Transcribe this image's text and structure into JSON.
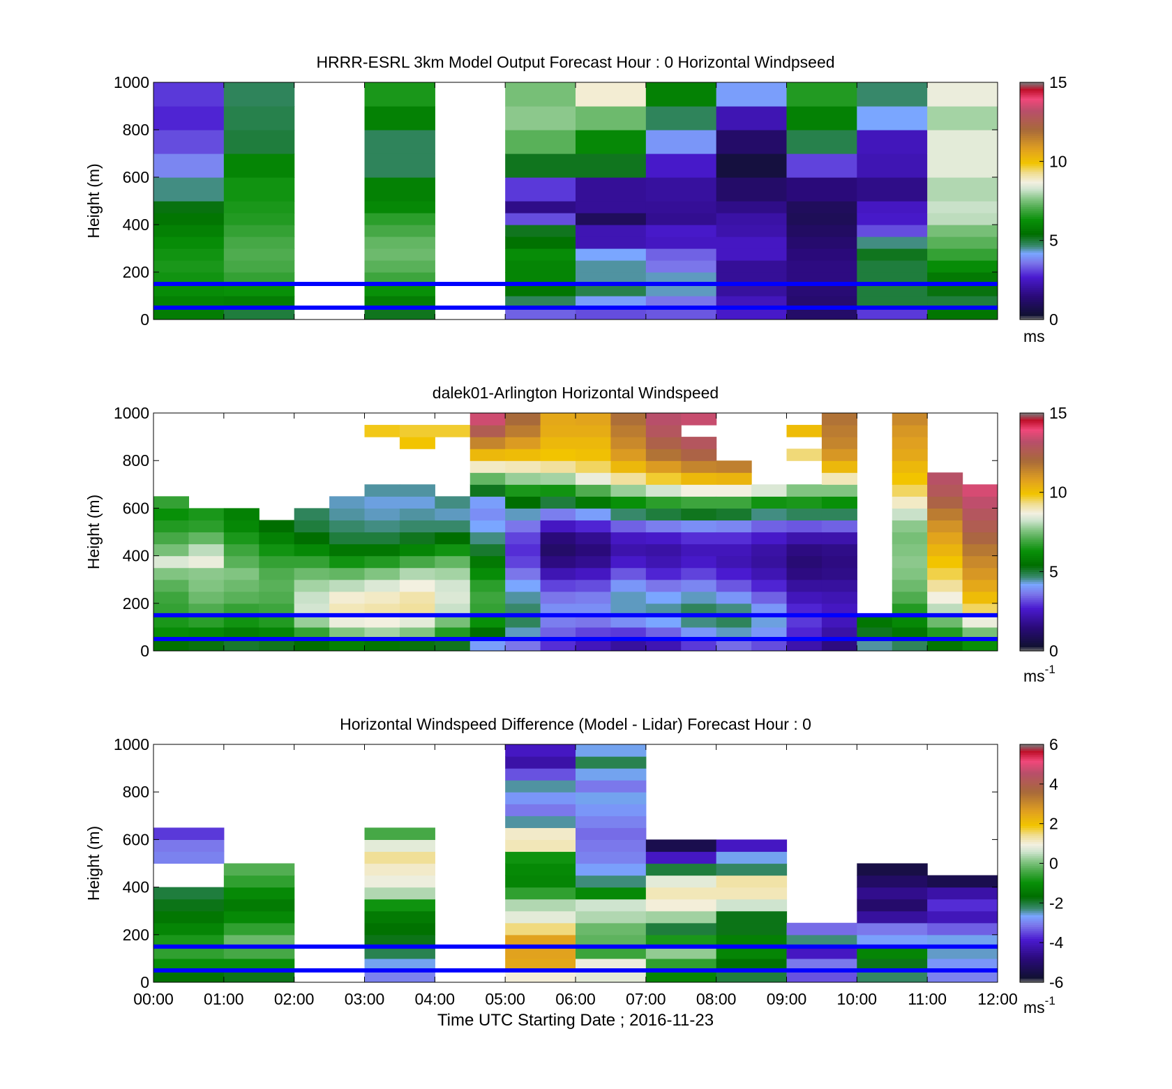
{
  "figure": {
    "x_labels": [
      "00:00",
      "01:00",
      "02:00",
      "03:00",
      "04:00",
      "05:00",
      "06:00",
      "07:00",
      "08:00",
      "09:00",
      "10:00",
      "11:00",
      "12:00"
    ],
    "x_title": "Time UTC  Starting Date ; 2016-11-23",
    "highlight_heights_m": [
      50,
      150
    ],
    "highlight_color": "#0000ff"
  },
  "colors": {
    "background": "#ffffff",
    "nodata_gray": "#808080",
    "speed_colormap": [
      [
        0.0,
        "#7a7a7a"
      ],
      [
        0.02,
        "#111133"
      ],
      [
        0.1,
        "#2a0a7a"
      ],
      [
        0.18,
        "#4a1ad0"
      ],
      [
        0.24,
        "#7b76ea"
      ],
      [
        0.28,
        "#7aa6ff"
      ],
      [
        0.31,
        "#3b8a72"
      ],
      [
        0.36,
        "#006e00"
      ],
      [
        0.42,
        "#089008"
      ],
      [
        0.47,
        "#4aaa4a"
      ],
      [
        0.51,
        "#86c686"
      ],
      [
        0.55,
        "#cfe4cf"
      ],
      [
        0.58,
        "#f3f0e0"
      ],
      [
        0.62,
        "#f0dd90"
      ],
      [
        0.66,
        "#f2c400"
      ],
      [
        0.72,
        "#e0a020"
      ],
      [
        0.8,
        "#a86a3a"
      ],
      [
        0.88,
        "#b84f6a"
      ],
      [
        0.93,
        "#f0487a"
      ],
      [
        0.97,
        "#c0102a"
      ],
      [
        1.0,
        "#7a7a7a"
      ]
    ]
  },
  "chart_data": [
    {
      "type": "heatmap",
      "title": "HRRR-ESRL 3km Model Output   Forecast Hour : 0 Horizontal Windpseed",
      "xlabel": "",
      "ylabel": "Height (m)",
      "ylim": [
        0,
        1000
      ],
      "yticks": [
        0,
        200,
        400,
        600,
        800,
        1000
      ],
      "clim": [
        0,
        15
      ],
      "cticks": [
        0,
        5,
        10,
        15
      ],
      "cbar_label": "ms",
      "cbar_sup": "",
      "x_hours": [
        0,
        1,
        2,
        3,
        4,
        5,
        6,
        7,
        8,
        9,
        10,
        11
      ],
      "levels_m": [
        50,
        100,
        150,
        200,
        250,
        300,
        350,
        400,
        450,
        500,
        600,
        700,
        800,
        900,
        1000
      ],
      "windspeed_ms": [
        [
          5.8,
          5.9,
          6.2,
          6.4,
          6.5,
          6.4,
          6.2,
          5.9,
          5.6,
          5.3,
          4.6,
          3.8,
          3.2,
          2.8,
          3.0
        ],
        [
          5.0,
          5.8,
          6.3,
          6.8,
          7.0,
          7.1,
          7.0,
          6.8,
          6.6,
          6.5,
          6.4,
          6.0,
          5.0,
          4.9,
          4.8
        ],
        [
          null,
          null,
          null,
          null,
          null,
          null,
          null,
          null,
          null,
          null,
          null,
          null,
          null,
          null,
          null
        ],
        [
          5.2,
          5.8,
          6.3,
          6.9,
          7.2,
          7.4,
          7.3,
          7.0,
          6.7,
          6.1,
          5.9,
          4.8,
          4.8,
          5.9,
          6.5
        ],
        [
          null,
          null,
          null,
          null,
          null,
          null,
          null,
          null,
          null,
          null,
          null,
          null,
          null,
          null,
          null
        ],
        [
          3.4,
          4.8,
          5.6,
          6.0,
          6.0,
          6.2,
          5.5,
          5.2,
          3.2,
          1.7,
          3.0,
          5.2,
          7.2,
          7.7,
          7.5
        ],
        [
          3.2,
          4.1,
          4.9,
          4.5,
          4.5,
          4.2,
          2.3,
          2.3,
          1.0,
          1.9,
          1.9,
          5.2,
          6.1,
          7.4,
          8.8
        ],
        [
          3.3,
          3.6,
          4.4,
          4.4,
          3.6,
          3.4,
          2.5,
          2.6,
          1.8,
          1.9,
          2.0,
          2.6,
          4.0,
          4.8,
          5.9
        ],
        [
          2.6,
          2.4,
          2.0,
          1.9,
          1.9,
          2.5,
          2.5,
          2.2,
          2.1,
          1.7,
          1.2,
          0.5,
          1.2,
          2.3,
          4.1
        ],
        [
          1.2,
          1.3,
          1.4,
          1.6,
          1.6,
          1.5,
          1.3,
          1.1,
          0.9,
          1.0,
          1.5,
          3.1,
          4.9,
          5.9,
          6.6
        ],
        [
          3.0,
          5.0,
          5.0,
          5.0,
          5.0,
          5.2,
          4.6,
          3.2,
          2.6,
          2.5,
          1.7,
          2.3,
          2.4,
          4.2,
          4.7
        ],
        [
          5.6,
          5.0,
          5.3,
          5.7,
          6.2,
          6.8,
          7.2,
          7.5,
          8.1,
          8.2,
          8.0,
          8.5,
          8.5,
          7.9,
          8.6
        ]
      ]
    },
    {
      "type": "heatmap",
      "title": "dalek01-Arlington  Horizontal Windspeed",
      "xlabel": "",
      "ylabel": "Height (m)",
      "ylim": [
        0,
        1000
      ],
      "yticks": [
        0,
        200,
        400,
        600,
        800,
        1000
      ],
      "clim": [
        0,
        15
      ],
      "cticks": [
        0,
        5,
        10,
        15
      ],
      "cbar_label": "ms",
      "cbar_sup": "-1",
      "x_hours": [
        0,
        0.5,
        1,
        1.5,
        2,
        2.5,
        3,
        3.5,
        4,
        4.5,
        5,
        5.5,
        6,
        6.5,
        7,
        7.5,
        8,
        8.5,
        9,
        9.5,
        10,
        10.5,
        11,
        11.5
      ],
      "levels_m": [
        50,
        100,
        150,
        200,
        250,
        300,
        350,
        400,
        450,
        500,
        550,
        600,
        650,
        700,
        750,
        800,
        850,
        900,
        950,
        1000
      ],
      "windspeed_ms": [
        [
          5.5,
          6.2,
          6.5,
          6.8,
          6.9,
          7.2,
          7.6,
          8.4,
          7.5,
          7.0,
          6.6,
          6.3,
          6.8,
          null,
          null,
          null,
          null,
          null,
          null,
          null
        ],
        [
          5.3,
          6.1,
          6.7,
          7.1,
          7.4,
          7.6,
          7.7,
          8.6,
          8.1,
          7.3,
          6.7,
          6.5,
          null,
          null,
          null,
          null,
          null,
          null,
          null,
          null
        ],
        [
          5.1,
          5.8,
          6.4,
          6.8,
          7.2,
          7.4,
          7.6,
          7.2,
          6.9,
          6.5,
          6.1,
          5.9,
          null,
          null,
          null,
          null,
          null,
          null,
          null,
          null
        ],
        [
          5.2,
          6.0,
          6.6,
          6.9,
          7.1,
          7.2,
          7.1,
          6.8,
          6.4,
          5.9,
          5.4,
          null,
          null,
          null,
          null,
          null,
          null,
          null,
          null,
          null
        ],
        [
          5.4,
          6.8,
          7.8,
          8.3,
          8.2,
          7.9,
          7.4,
          6.8,
          6.1,
          5.4,
          5.0,
          4.8,
          null,
          null,
          null,
          null,
          null,
          null,
          null,
          null
        ],
        [
          5.9,
          7.6,
          8.6,
          9.0,
          8.8,
          8.1,
          7.3,
          6.4,
          5.6,
          5.0,
          4.7,
          4.5,
          4.4,
          null,
          null,
          null,
          null,
          null,
          null,
          null
        ],
        [
          5.6,
          7.9,
          8.7,
          9.1,
          8.9,
          8.4,
          7.6,
          6.6,
          5.6,
          5.0,
          4.6,
          4.4,
          4.3,
          4.5,
          null,
          null,
          null,
          null,
          9.8,
          null
        ],
        [
          5.3,
          7.6,
          8.5,
          9.2,
          9.1,
          8.7,
          8.0,
          7.0,
          6.0,
          5.2,
          4.7,
          4.5,
          4.3,
          4.5,
          null,
          null,
          null,
          9.9,
          9.7,
          null
        ],
        [
          5.2,
          6.6,
          7.5,
          8.2,
          8.4,
          8.3,
          7.9,
          7.3,
          6.4,
          5.4,
          4.7,
          4.4,
          4.6,
          null,
          null,
          null,
          null,
          null,
          9.7,
          null
        ],
        [
          4.1,
          5.4,
          6.3,
          6.8,
          6.9,
          6.7,
          6.2,
          5.7,
          5.1,
          4.6,
          4.2,
          3.9,
          4.1,
          5.2,
          7.3,
          8.9,
          10.2,
          11.4,
          12.6,
          13.5
        ],
        [
          3.6,
          4.4,
          4.8,
          4.7,
          4.5,
          4.2,
          3.6,
          3.1,
          2.9,
          3.1,
          3.6,
          4.4,
          5.4,
          6.5,
          7.8,
          9.0,
          10.1,
          10.9,
          11.6,
          12.0
        ],
        [
          2.9,
          3.4,
          3.7,
          3.9,
          3.6,
          3.1,
          2.3,
          1.6,
          1.2,
          1.5,
          2.5,
          3.7,
          5.0,
          6.4,
          7.9,
          9.2,
          9.9,
          10.2,
          10.5,
          10.6
        ],
        [
          2.4,
          3.1,
          3.6,
          3.9,
          3.7,
          3.2,
          2.5,
          1.8,
          1.5,
          1.8,
          2.8,
          4.1,
          5.7,
          7.1,
          8.6,
          9.5,
          10.0,
          10.2,
          10.5,
          10.7
        ],
        [
          2.0,
          3.0,
          3.9,
          4.4,
          4.4,
          4.0,
          3.3,
          2.6,
          2.2,
          2.5,
          3.4,
          4.7,
          6.3,
          7.8,
          9.2,
          10.2,
          10.9,
          11.3,
          11.6,
          11.9
        ],
        [
          2.3,
          3.4,
          4.2,
          4.5,
          4.2,
          3.6,
          2.8,
          2.3,
          2.1,
          2.6,
          3.7,
          5.0,
          6.7,
          8.3,
          9.7,
          10.9,
          11.8,
          12.4,
          12.9,
          13.2
        ],
        [
          3.0,
          4.0,
          4.6,
          4.8,
          4.4,
          3.8,
          3.1,
          2.6,
          2.4,
          2.9,
          3.9,
          5.2,
          6.9,
          8.7,
          10.2,
          11.4,
          12.3,
          12.9,
          null,
          13.4
        ],
        [
          3.5,
          4.4,
          4.8,
          4.6,
          4.0,
          3.3,
          2.7,
          2.3,
          2.4,
          2.9,
          3.8,
          5.1,
          6.9,
          8.7,
          10.3,
          11.5,
          null,
          null,
          null,
          null
        ],
        [
          3.2,
          4.0,
          4.3,
          4.0,
          3.4,
          2.8,
          2.3,
          2.0,
          2.1,
          2.6,
          3.4,
          4.6,
          6.4,
          8.4,
          null,
          null,
          null,
          null,
          null,
          null
        ],
        [
          2.2,
          2.8,
          3.0,
          2.8,
          2.4,
          2.0,
          1.6,
          1.4,
          1.6,
          2.2,
          3.3,
          4.8,
          6.5,
          7.6,
          null,
          null,
          9.4,
          null,
          10.1,
          null
        ],
        [
          1.6,
          2.1,
          2.4,
          2.5,
          2.3,
          2.0,
          1.7,
          1.6,
          1.7,
          2.2,
          3.4,
          4.8,
          6.3,
          7.6,
          9.0,
          10.2,
          11.0,
          11.4,
          11.6,
          11.8
        ],
        [
          4.5,
          5.2,
          5.6,
          null,
          null,
          null,
          null,
          null,
          null,
          null,
          null,
          null,
          null,
          null,
          null,
          null,
          null,
          null,
          null,
          null
        ],
        [
          4.8,
          5.6,
          6.1,
          6.6,
          7.1,
          7.4,
          7.6,
          7.7,
          7.6,
          7.5,
          7.7,
          8.2,
          8.9,
          9.5,
          9.9,
          10.2,
          10.6,
          10.8,
          11.0,
          11.3
        ],
        [
          5.6,
          6.6,
          7.4,
          8.1,
          8.7,
          9.2,
          9.6,
          9.9,
          10.3,
          10.7,
          11.1,
          11.6,
          12.3,
          12.8,
          13.1,
          null,
          null,
          null,
          null,
          null
        ],
        [
          6.3,
          7.5,
          8.6,
          9.5,
          10.1,
          10.6,
          11.0,
          11.3,
          11.7,
          12.2,
          12.6,
          12.9,
          13.3,
          13.6,
          null,
          null,
          null,
          null,
          null,
          null
        ]
      ]
    },
    {
      "type": "heatmap",
      "title": "Horizontal Windspeed Difference (Model - Lidar) Forecast Hour : 0",
      "xlabel": "Time UTC  Starting Date ; 2016-11-23",
      "ylabel": "Height (m)",
      "ylim": [
        0,
        1000
      ],
      "yticks": [
        0,
        200,
        400,
        600,
        800,
        1000
      ],
      "clim": [
        -6,
        6
      ],
      "cticks": [
        -6,
        -4,
        -2,
        0,
        2,
        4,
        6
      ],
      "cbar_label": "ms",
      "cbar_sup": "-1",
      "x_hours": [
        0,
        1,
        2,
        3,
        4,
        5,
        6,
        7,
        8,
        9,
        10,
        11
      ],
      "levels_m": [
        50,
        100,
        150,
        200,
        250,
        300,
        350,
        400,
        450,
        500,
        550,
        600,
        650,
        700,
        750,
        800,
        850,
        900,
        950,
        1000
      ],
      "difference_ms": [
        [
          -1.6,
          -1.0,
          -0.6,
          -0.8,
          -1.2,
          -1.5,
          -1.8,
          -2.0,
          null,
          null,
          -3.0,
          -3.1,
          -3.6,
          null,
          null,
          null,
          null,
          null,
          null,
          null
        ],
        [
          -1.8,
          -1.0,
          -0.4,
          -0.1,
          -0.6,
          -1.1,
          -1.4,
          -1.1,
          -0.6,
          -0.3,
          null,
          null,
          null,
          null,
          null,
          null,
          null,
          null,
          null,
          null
        ],
        [
          null,
          null,
          null,
          null,
          null,
          null,
          null,
          null,
          null,
          null,
          null,
          null,
          null,
          null,
          null,
          null,
          null,
          null,
          null,
          null
        ],
        [
          -3.0,
          -2.6,
          -2.1,
          -1.8,
          -1.6,
          -1.4,
          -0.9,
          0.4,
          0.9,
          1.1,
          1.4,
          0.8,
          -0.4,
          null,
          null,
          null,
          null,
          null,
          null,
          null
        ],
        [
          null,
          null,
          null,
          null,
          null,
          null,
          null,
          null,
          null,
          null,
          null,
          null,
          null,
          null,
          null,
          null,
          null,
          null,
          null,
          null
        ],
        [
          1.0,
          2.5,
          2.6,
          2.6,
          1.5,
          0.8,
          0.4,
          -0.6,
          -1.2,
          -1.1,
          -0.9,
          1.2,
          1.1,
          -2.4,
          -3.1,
          -2.8,
          -2.4,
          -3.4,
          -4.3,
          -4.0
        ],
        [
          0.8,
          0.9,
          -0.5,
          -0.2,
          -0.1,
          0.4,
          0.6,
          -1.1,
          -2.3,
          -2.7,
          -3.0,
          -3.1,
          -3.2,
          -3.0,
          -2.8,
          -2.6,
          -3.1,
          -2.6,
          -2.1,
          -2.6
        ],
        [
          -1.2,
          -0.6,
          0.2,
          -0.8,
          -2.0,
          0.3,
          1.0,
          1.2,
          0.8,
          -2.0,
          -4.0,
          -5.4,
          null,
          null,
          null,
          null,
          null,
          null,
          null,
          null
        ],
        [
          -2.0,
          -1.6,
          -1.2,
          -1.3,
          -1.8,
          -1.8,
          0.6,
          1.2,
          1.3,
          -2.2,
          -2.6,
          -4.0,
          null,
          null,
          null,
          null,
          null,
          null,
          null,
          null
        ],
        [
          -3.4,
          -3.1,
          -4.0,
          -2.3,
          -3.2,
          null,
          null,
          null,
          null,
          null,
          null,
          null,
          null,
          null,
          null,
          null,
          null,
          null,
          null,
          null
        ],
        [
          -2.2,
          -1.8,
          -1.2,
          -2.7,
          -3.1,
          -4.4,
          -5.0,
          -4.6,
          -5.1,
          -5.5,
          null,
          null,
          null,
          null,
          null,
          null,
          null,
          null,
          null,
          null
        ],
        [
          -3.0,
          -2.8,
          -2.5,
          -2.6,
          -3.3,
          -4.1,
          -3.7,
          -4.3,
          -5.4,
          null,
          null,
          null,
          null,
          null,
          null,
          null,
          null,
          null,
          null,
          null
        ]
      ]
    }
  ]
}
